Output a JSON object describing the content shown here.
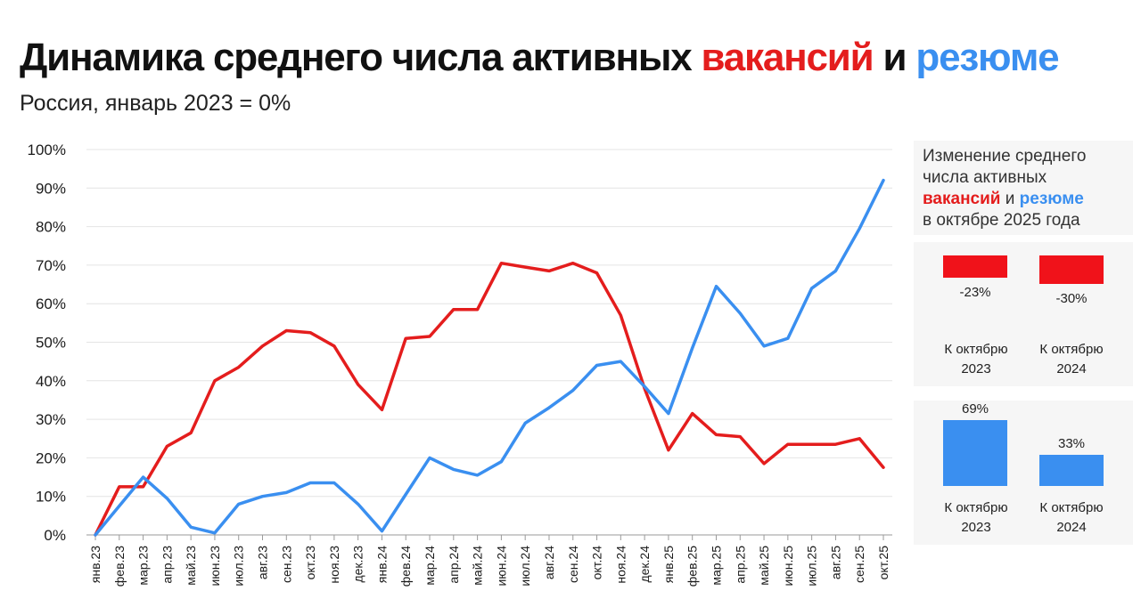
{
  "title": {
    "part1": "Динамика среднего числа активных",
    "vacancies": "вакансий",
    "and": "и",
    "resumes": "резюме"
  },
  "subtitle": "Россия, январь 2023 = 0%",
  "colors": {
    "vacancies": "#e41d1d",
    "resumes": "#3a8ff0"
  },
  "chart_data": {
    "type": "line",
    "categories": [
      "янв.23",
      "фев.23",
      "мар.23",
      "апр.23",
      "май.23",
      "июн.23",
      "июл.23",
      "авг.23",
      "сен.23",
      "окт.23",
      "ноя.23",
      "дек.23",
      "янв.24",
      "фев.24",
      "мар.24",
      "апр.24",
      "май.24",
      "июн.24",
      "июл.24",
      "авг.24",
      "сен.24",
      "окт.24",
      "ноя.24",
      "дек.24",
      "янв.25",
      "фев.25",
      "мар.25",
      "апр.25",
      "май.25",
      "июн.25",
      "июл.25",
      "авг.25",
      "сен.25",
      "окт.25"
    ],
    "series": [
      {
        "values": [
          0,
          12.5,
          12.5,
          23,
          26.5,
          40,
          43.5,
          49,
          53,
          52.5,
          49,
          39,
          32.5,
          51,
          51.5,
          58.5,
          58.5,
          70.5,
          69.5,
          68.5,
          70.5,
          68,
          57,
          38,
          22,
          31.5,
          26,
          25.5,
          18.5,
          23.5,
          23.5,
          23.5,
          25,
          17.5
        ],
        "color": "#e41d1d"
      },
      {
        "values": [
          0,
          7.5,
          15,
          9.5,
          2,
          0.5,
          8,
          10,
          11,
          13.5,
          13.5,
          8,
          1,
          10.5,
          20,
          17,
          15.5,
          19,
          29,
          33,
          37.5,
          44,
          45,
          38.5,
          31.5,
          48.5,
          64.5,
          57.5,
          49,
          51,
          64,
          68.5,
          79.5,
          92
        ],
        "color": "#3a8ff0"
      }
    ],
    "yticks": [
      "0%",
      "10%",
      "20%",
      "30%",
      "40%",
      "50%",
      "60%",
      "70%",
      "80%",
      "90%",
      "100%"
    ],
    "ylim": [
      0,
      100
    ],
    "grid": true,
    "legend": "none"
  },
  "side": {
    "heading_line1": "Изменение среднего",
    "heading_line2": "числа активных",
    "heading_vac": "вакансий",
    "heading_and": " и ",
    "heading_res": "резюме",
    "heading_line4": "в октябре 2025 года",
    "vacancies": [
      {
        "value": -23,
        "label": "-23%",
        "cap1": "К октябрю",
        "cap2": "2023"
      },
      {
        "value": -30,
        "label": "-30%",
        "cap1": "К октябрю",
        "cap2": "2024"
      }
    ],
    "resumes": [
      {
        "value": 69,
        "label": "69%",
        "cap1": "К октябрю",
        "cap2": "2023"
      },
      {
        "value": 33,
        "label": "33%",
        "cap1": "К октябрю",
        "cap2": "2024"
      }
    ]
  }
}
